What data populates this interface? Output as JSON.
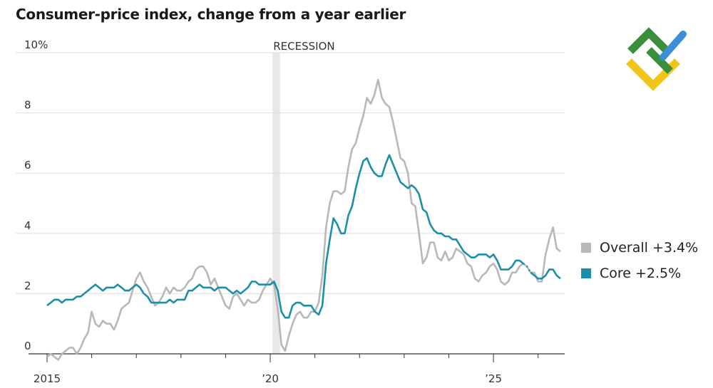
{
  "title": "Consumer-price index, change from a year earlier",
  "colors": {
    "overall": "#b8b8b8",
    "core": "#1b8fa8",
    "recession": "#e8e8ea",
    "grid": "#dedede",
    "axis": "#333333"
  },
  "logo": {
    "icon": "brand-logo-icon",
    "colors": [
      "#3a8f3a",
      "#f0c419",
      "#3b8fd9"
    ]
  },
  "legend": [
    {
      "key": "overall",
      "label": "Overall +3.4%"
    },
    {
      "key": "core",
      "label": "Core +2.5%"
    }
  ],
  "chart_data": {
    "type": "line",
    "title": "Consumer-price index, change from a year earlier",
    "xlabel": "",
    "ylabel": "",
    "xlim": [
      "2015-01",
      "2026-06"
    ],
    "ylim": [
      0,
      10
    ],
    "y_ticks": [
      "0",
      "2",
      "4",
      "6",
      "8",
      "10%"
    ],
    "x_tick_labels": [
      {
        "x": "2015-01",
        "label": "2015"
      },
      {
        "x": "2020-01",
        "label": "’20"
      },
      {
        "x": "2025-01",
        "label": "’25"
      }
    ],
    "x_minor_ticks": [
      "2016-01",
      "2017-01",
      "2018-01",
      "2019-01",
      "2021-01",
      "2022-01",
      "2023-01",
      "2024-01",
      "2026-01"
    ],
    "grid": true,
    "annotations": [
      {
        "text": "RECESSION",
        "x_start": "2020-02",
        "x_end": "2020-04"
      }
    ],
    "series": [
      {
        "name": "Overall",
        "key": "overall",
        "points": [
          [
            "2015-01",
            -0.1
          ],
          [
            "2015-02",
            0.0
          ],
          [
            "2015-03",
            -0.1
          ],
          [
            "2015-04",
            -0.2
          ],
          [
            "2015-05",
            0.0
          ],
          [
            "2015-06",
            0.1
          ],
          [
            "2015-07",
            0.2
          ],
          [
            "2015-08",
            0.2
          ],
          [
            "2015-09",
            0.0
          ],
          [
            "2015-10",
            0.2
          ],
          [
            "2015-11",
            0.5
          ],
          [
            "2015-12",
            0.7
          ],
          [
            "2016-01",
            1.4
          ],
          [
            "2016-02",
            1.0
          ],
          [
            "2016-03",
            0.9
          ],
          [
            "2016-04",
            1.1
          ],
          [
            "2016-05",
            1.0
          ],
          [
            "2016-06",
            1.0
          ],
          [
            "2016-07",
            0.8
          ],
          [
            "2016-08",
            1.1
          ],
          [
            "2016-09",
            1.5
          ],
          [
            "2016-10",
            1.6
          ],
          [
            "2016-11",
            1.7
          ],
          [
            "2016-12",
            2.1
          ],
          [
            "2017-01",
            2.5
          ],
          [
            "2017-02",
            2.7
          ],
          [
            "2017-03",
            2.4
          ],
          [
            "2017-04",
            2.2
          ],
          [
            "2017-05",
            1.9
          ],
          [
            "2017-06",
            1.6
          ],
          [
            "2017-07",
            1.7
          ],
          [
            "2017-08",
            1.9
          ],
          [
            "2017-09",
            2.2
          ],
          [
            "2017-10",
            2.0
          ],
          [
            "2017-11",
            2.2
          ],
          [
            "2017-12",
            2.1
          ],
          [
            "2018-01",
            2.1
          ],
          [
            "2018-02",
            2.2
          ],
          [
            "2018-03",
            2.4
          ],
          [
            "2018-04",
            2.5
          ],
          [
            "2018-05",
            2.8
          ],
          [
            "2018-06",
            2.9
          ],
          [
            "2018-07",
            2.9
          ],
          [
            "2018-08",
            2.7
          ],
          [
            "2018-09",
            2.3
          ],
          [
            "2018-10",
            2.5
          ],
          [
            "2018-11",
            2.2
          ],
          [
            "2018-12",
            1.9
          ],
          [
            "2019-01",
            1.6
          ],
          [
            "2019-02",
            1.5
          ],
          [
            "2019-03",
            1.9
          ],
          [
            "2019-04",
            2.0
          ],
          [
            "2019-05",
            1.8
          ],
          [
            "2019-06",
            1.6
          ],
          [
            "2019-07",
            1.8
          ],
          [
            "2019-08",
            1.7
          ],
          [
            "2019-09",
            1.7
          ],
          [
            "2019-10",
            1.8
          ],
          [
            "2019-11",
            2.1
          ],
          [
            "2019-12",
            2.3
          ],
          [
            "2020-01",
            2.5
          ],
          [
            "2020-02",
            2.3
          ],
          [
            "2020-03",
            1.5
          ],
          [
            "2020-04",
            0.3
          ],
          [
            "2020-05",
            0.1
          ],
          [
            "2020-06",
            0.6
          ],
          [
            "2020-07",
            1.0
          ],
          [
            "2020-08",
            1.3
          ],
          [
            "2020-09",
            1.4
          ],
          [
            "2020-10",
            1.2
          ],
          [
            "2020-11",
            1.2
          ],
          [
            "2020-12",
            1.4
          ],
          [
            "2021-01",
            1.4
          ],
          [
            "2021-02",
            1.7
          ],
          [
            "2021-03",
            2.6
          ],
          [
            "2021-04",
            4.2
          ],
          [
            "2021-05",
            5.0
          ],
          [
            "2021-06",
            5.4
          ],
          [
            "2021-07",
            5.4
          ],
          [
            "2021-08",
            5.3
          ],
          [
            "2021-09",
            5.4
          ],
          [
            "2021-10",
            6.2
          ],
          [
            "2021-11",
            6.8
          ],
          [
            "2021-12",
            7.0
          ],
          [
            "2022-01",
            7.5
          ],
          [
            "2022-02",
            7.9
          ],
          [
            "2022-03",
            8.5
          ],
          [
            "2022-04",
            8.3
          ],
          [
            "2022-05",
            8.6
          ],
          [
            "2022-06",
            9.1
          ],
          [
            "2022-07",
            8.5
          ],
          [
            "2022-08",
            8.3
          ],
          [
            "2022-09",
            8.2
          ],
          [
            "2022-10",
            7.7
          ],
          [
            "2022-11",
            7.1
          ],
          [
            "2022-12",
            6.5
          ],
          [
            "2023-01",
            6.4
          ],
          [
            "2023-02",
            6.0
          ],
          [
            "2023-03",
            5.0
          ],
          [
            "2023-04",
            4.9
          ],
          [
            "2023-05",
            4.0
          ],
          [
            "2023-06",
            3.0
          ],
          [
            "2023-07",
            3.2
          ],
          [
            "2023-08",
            3.7
          ],
          [
            "2023-09",
            3.7
          ],
          [
            "2023-10",
            3.2
          ],
          [
            "2023-11",
            3.1
          ],
          [
            "2023-12",
            3.4
          ],
          [
            "2024-01",
            3.1
          ],
          [
            "2024-02",
            3.2
          ],
          [
            "2024-03",
            3.5
          ],
          [
            "2024-04",
            3.4
          ],
          [
            "2024-05",
            3.3
          ],
          [
            "2024-06",
            3.0
          ],
          [
            "2024-07",
            2.9
          ],
          [
            "2024-08",
            2.5
          ],
          [
            "2024-09",
            2.4
          ],
          [
            "2024-10",
            2.6
          ],
          [
            "2024-11",
            2.7
          ],
          [
            "2024-12",
            2.9
          ],
          [
            "2025-01",
            3.0
          ],
          [
            "2025-02",
            2.8
          ],
          [
            "2025-03",
            2.4
          ],
          [
            "2025-04",
            2.3
          ],
          [
            "2025-05",
            2.4
          ],
          [
            "2025-06",
            2.7
          ],
          [
            "2025-07",
            2.7
          ],
          [
            "2025-08",
            2.9
          ],
          [
            "2025-09",
            3.0
          ],
          [
            "2025-10",
            2.9
          ],
          [
            "2025-11",
            2.7
          ],
          [
            "2025-12",
            2.7
          ],
          [
            "2026-01",
            2.4
          ],
          [
            "2026-02",
            2.4
          ],
          [
            "2026-03",
            3.3
          ],
          [
            "2026-04",
            3.8
          ],
          [
            "2026-05",
            4.2
          ],
          [
            "2026-06",
            3.5
          ],
          [
            "2026-07",
            3.4
          ]
        ]
      },
      {
        "name": "Core",
        "key": "core",
        "points": [
          [
            "2015-01",
            1.6
          ],
          [
            "2015-02",
            1.7
          ],
          [
            "2015-03",
            1.8
          ],
          [
            "2015-04",
            1.8
          ],
          [
            "2015-05",
            1.7
          ],
          [
            "2015-06",
            1.8
          ],
          [
            "2015-07",
            1.8
          ],
          [
            "2015-08",
            1.8
          ],
          [
            "2015-09",
            1.9
          ],
          [
            "2015-10",
            1.9
          ],
          [
            "2015-11",
            2.0
          ],
          [
            "2015-12",
            2.1
          ],
          [
            "2016-01",
            2.2
          ],
          [
            "2016-02",
            2.3
          ],
          [
            "2016-03",
            2.2
          ],
          [
            "2016-04",
            2.1
          ],
          [
            "2016-05",
            2.2
          ],
          [
            "2016-06",
            2.2
          ],
          [
            "2016-07",
            2.2
          ],
          [
            "2016-08",
            2.3
          ],
          [
            "2016-09",
            2.2
          ],
          [
            "2016-10",
            2.1
          ],
          [
            "2016-11",
            2.1
          ],
          [
            "2016-12",
            2.2
          ],
          [
            "2017-01",
            2.3
          ],
          [
            "2017-02",
            2.2
          ],
          [
            "2017-03",
            2.0
          ],
          [
            "2017-04",
            1.9
          ],
          [
            "2017-05",
            1.7
          ],
          [
            "2017-06",
            1.7
          ],
          [
            "2017-07",
            1.7
          ],
          [
            "2017-08",
            1.7
          ],
          [
            "2017-09",
            1.7
          ],
          [
            "2017-10",
            1.8
          ],
          [
            "2017-11",
            1.7
          ],
          [
            "2017-12",
            1.8
          ],
          [
            "2018-01",
            1.8
          ],
          [
            "2018-02",
            1.8
          ],
          [
            "2018-03",
            2.1
          ],
          [
            "2018-04",
            2.1
          ],
          [
            "2018-05",
            2.2
          ],
          [
            "2018-06",
            2.3
          ],
          [
            "2018-07",
            2.2
          ],
          [
            "2018-08",
            2.2
          ],
          [
            "2018-09",
            2.2
          ],
          [
            "2018-10",
            2.1
          ],
          [
            "2018-11",
            2.2
          ],
          [
            "2018-12",
            2.2
          ],
          [
            "2019-01",
            2.2
          ],
          [
            "2019-02",
            2.1
          ],
          [
            "2019-03",
            2.0
          ],
          [
            "2019-04",
            2.1
          ],
          [
            "2019-05",
            2.0
          ],
          [
            "2019-06",
            2.1
          ],
          [
            "2019-07",
            2.2
          ],
          [
            "2019-08",
            2.4
          ],
          [
            "2019-09",
            2.4
          ],
          [
            "2019-10",
            2.3
          ],
          [
            "2019-11",
            2.3
          ],
          [
            "2019-12",
            2.3
          ],
          [
            "2020-01",
            2.3
          ],
          [
            "2020-02",
            2.4
          ],
          [
            "2020-03",
            2.1
          ],
          [
            "2020-04",
            1.4
          ],
          [
            "2020-05",
            1.2
          ],
          [
            "2020-06",
            1.2
          ],
          [
            "2020-07",
            1.6
          ],
          [
            "2020-08",
            1.7
          ],
          [
            "2020-09",
            1.7
          ],
          [
            "2020-10",
            1.6
          ],
          [
            "2020-11",
            1.6
          ],
          [
            "2020-12",
            1.6
          ],
          [
            "2021-01",
            1.4
          ],
          [
            "2021-02",
            1.3
          ],
          [
            "2021-03",
            1.6
          ],
          [
            "2021-04",
            3.0
          ],
          [
            "2021-05",
            3.8
          ],
          [
            "2021-06",
            4.5
          ],
          [
            "2021-07",
            4.3
          ],
          [
            "2021-08",
            4.0
          ],
          [
            "2021-09",
            4.0
          ],
          [
            "2021-10",
            4.6
          ],
          [
            "2021-11",
            4.9
          ],
          [
            "2021-12",
            5.5
          ],
          [
            "2022-01",
            6.0
          ],
          [
            "2022-02",
            6.4
          ],
          [
            "2022-03",
            6.5
          ],
          [
            "2022-04",
            6.2
          ],
          [
            "2022-05",
            6.0
          ],
          [
            "2022-06",
            5.9
          ],
          [
            "2022-07",
            5.9
          ],
          [
            "2022-08",
            6.3
          ],
          [
            "2022-09",
            6.6
          ],
          [
            "2022-10",
            6.3
          ],
          [
            "2022-11",
            6.0
          ],
          [
            "2022-12",
            5.7
          ],
          [
            "2023-01",
            5.6
          ],
          [
            "2023-02",
            5.5
          ],
          [
            "2023-03",
            5.6
          ],
          [
            "2023-04",
            5.5
          ],
          [
            "2023-05",
            5.3
          ],
          [
            "2023-06",
            4.8
          ],
          [
            "2023-07",
            4.7
          ],
          [
            "2023-08",
            4.3
          ],
          [
            "2023-09",
            4.1
          ],
          [
            "2023-10",
            4.0
          ],
          [
            "2023-11",
            4.0
          ],
          [
            "2023-12",
            3.9
          ],
          [
            "2024-01",
            3.9
          ],
          [
            "2024-02",
            3.8
          ],
          [
            "2024-03",
            3.8
          ],
          [
            "2024-04",
            3.6
          ],
          [
            "2024-05",
            3.4
          ],
          [
            "2024-06",
            3.3
          ],
          [
            "2024-07",
            3.2
          ],
          [
            "2024-08",
            3.2
          ],
          [
            "2024-09",
            3.3
          ],
          [
            "2024-10",
            3.3
          ],
          [
            "2024-11",
            3.3
          ],
          [
            "2024-12",
            3.2
          ],
          [
            "2025-01",
            3.3
          ],
          [
            "2025-02",
            3.1
          ],
          [
            "2025-03",
            2.8
          ],
          [
            "2025-04",
            2.8
          ],
          [
            "2025-05",
            2.8
          ],
          [
            "2025-06",
            2.9
          ],
          [
            "2025-07",
            3.1
          ],
          [
            "2025-08",
            3.1
          ],
          [
            "2025-09",
            3.0
          ],
          [
            "2025-10",
            2.9
          ],
          [
            "2025-11",
            2.7
          ],
          [
            "2025-12",
            2.6
          ],
          [
            "2026-01",
            2.5
          ],
          [
            "2026-02",
            2.5
          ],
          [
            "2026-03",
            2.6
          ],
          [
            "2026-04",
            2.8
          ],
          [
            "2026-05",
            2.8
          ],
          [
            "2026-06",
            2.6
          ],
          [
            "2026-07",
            2.5
          ]
        ]
      }
    ]
  }
}
